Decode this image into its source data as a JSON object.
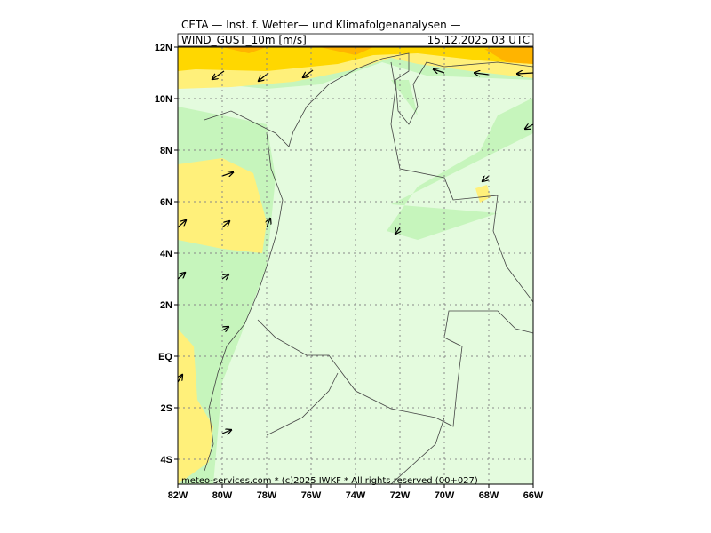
{
  "header": {
    "title": "CETA — Inst. f. Wetter— und Klimafolgenanalysen —",
    "variable": "WIND_GUST_10m [m/s]",
    "valid_time": "15.12.2025 03 UTC"
  },
  "map": {
    "lat_labels": [
      "12N",
      "10N",
      "8N",
      "6N",
      "4N",
      "2N",
      "EQ",
      "2S",
      "4S"
    ],
    "lon_labels": [
      "82W",
      "80W",
      "78W",
      "76W",
      "74W",
      "72W",
      "70W",
      "68W",
      "66W"
    ]
  },
  "footer": "meteo-services.com * (c)2025 IWKF * All rights reserved (00+027)"
}
